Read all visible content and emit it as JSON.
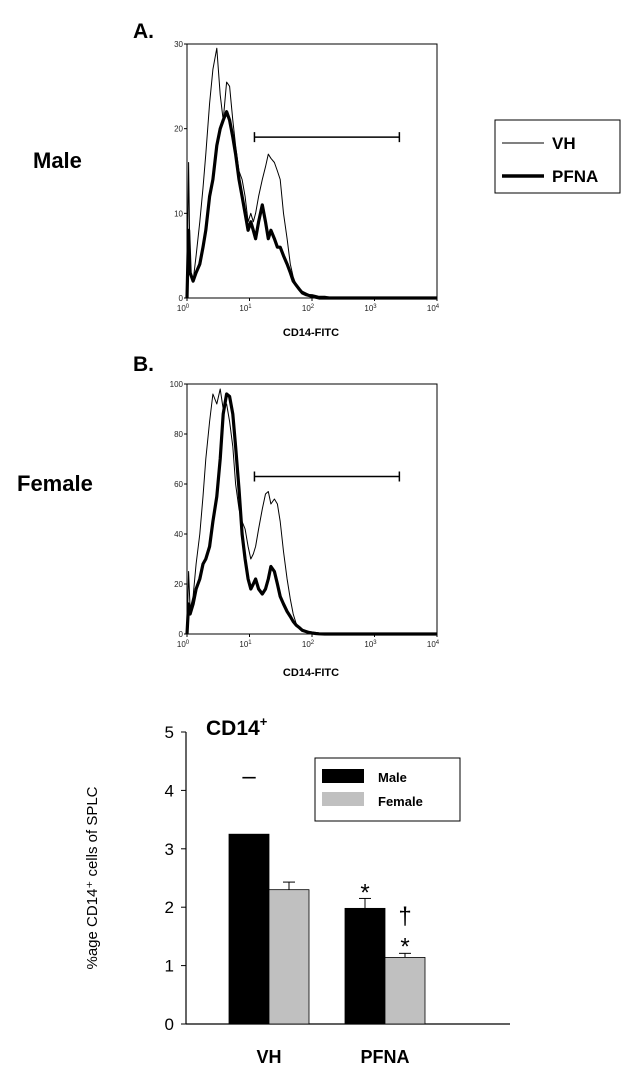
{
  "figure": {
    "panel_a_label": "A.",
    "panel_b_label": "B.",
    "male_label": "Male",
    "female_label": "Female",
    "legend": {
      "vh": "VH",
      "pfna": "PFNA"
    }
  },
  "chart_data": [
    {
      "id": "hist_male",
      "type": "line",
      "xlabel": "CD14-FITC",
      "xscale": "log",
      "xlim": [
        1,
        10000
      ],
      "ylim": [
        0,
        30
      ],
      "yticks": [
        0,
        10,
        20,
        30
      ],
      "xticks": [
        {
          "value": 1,
          "base": "10",
          "exp": "0"
        },
        {
          "value": 10,
          "base": "10",
          "exp": "1"
        },
        {
          "value": 100,
          "base": "10",
          "exp": "2"
        },
        {
          "value": 1000,
          "base": "10",
          "exp": "3"
        },
        {
          "value": 10000,
          "base": "10",
          "exp": "4"
        }
      ],
      "gate": [
        12,
        2500
      ],
      "gate_y": 19,
      "series": [
        {
          "name": "VH",
          "line": "thin",
          "x": [
            1.0,
            1.06,
            1.12,
            1.25,
            1.4,
            1.6,
            1.8,
            2.0,
            2.3,
            2.6,
            3.0,
            3.4,
            3.8,
            4.3,
            4.8,
            5.4,
            6.0,
            6.8,
            7.6,
            8.5,
            9.5,
            10.5,
            11.5,
            12.5,
            14,
            16,
            18,
            20,
            22,
            25,
            28,
            31,
            35,
            40,
            45,
            50,
            56,
            63,
            70,
            80,
            90,
            100,
            115,
            130,
            160,
            200,
            300,
            500,
            1000,
            3000,
            10000
          ],
          "y": [
            0,
            16,
            3,
            2,
            5,
            9,
            13,
            17,
            23,
            27,
            29.5,
            24,
            21,
            25.5,
            25,
            21,
            18,
            15,
            14,
            12,
            9,
            10,
            9,
            10,
            12,
            14,
            15.5,
            17,
            16.5,
            16,
            15,
            14,
            10,
            7,
            4,
            2.5,
            1.5,
            1,
            0.8,
            0.6,
            0.4,
            0.4,
            0.3,
            0.2,
            0.2,
            0.1,
            0,
            0,
            0,
            0,
            0
          ]
        },
        {
          "name": "PFNA",
          "line": "thick",
          "x": [
            1.0,
            1.06,
            1.12,
            1.25,
            1.4,
            1.6,
            1.8,
            2.0,
            2.3,
            2.6,
            3.0,
            3.4,
            3.8,
            4.3,
            4.8,
            5.4,
            6.0,
            6.8,
            7.6,
            8.5,
            9.5,
            10.5,
            11.5,
            12.5,
            14,
            16,
            18,
            20,
            22,
            25,
            28,
            31,
            35,
            40,
            45,
            50,
            56,
            63,
            70,
            80,
            90,
            100,
            115,
            130,
            160,
            200,
            300,
            500,
            1000,
            3000,
            10000
          ],
          "y": [
            0,
            8,
            3,
            2,
            3,
            4,
            6,
            8,
            12,
            14,
            18,
            20,
            21,
            22,
            21,
            19,
            17,
            14,
            12,
            10,
            8,
            9,
            8,
            7,
            9,
            11,
            9,
            7,
            8,
            7,
            6,
            6,
            5,
            4,
            3,
            2,
            1.5,
            1,
            0.6,
            0.4,
            0.3,
            0.2,
            0.1,
            0,
            0,
            0,
            0,
            0,
            0,
            0,
            0
          ]
        }
      ]
    },
    {
      "id": "hist_female",
      "type": "line",
      "xlabel": "CD14-FITC",
      "xscale": "log",
      "xlim": [
        1,
        10000
      ],
      "ylim": [
        0,
        100
      ],
      "yticks": [
        0,
        20,
        40,
        60,
        80,
        100
      ],
      "xticks": [
        {
          "value": 1,
          "base": "10",
          "exp": "0"
        },
        {
          "value": 10,
          "base": "10",
          "exp": "1"
        },
        {
          "value": 100,
          "base": "10",
          "exp": "2"
        },
        {
          "value": 1000,
          "base": "10",
          "exp": "3"
        },
        {
          "value": 10000,
          "base": "10",
          "exp": "4"
        }
      ],
      "gate": [
        12,
        2500
      ],
      "gate_y": 63,
      "series": [
        {
          "name": "VH",
          "line": "thin",
          "x": [
            1.0,
            1.06,
            1.12,
            1.25,
            1.4,
            1.6,
            1.8,
            2.0,
            2.3,
            2.6,
            3.0,
            3.4,
            3.8,
            4.3,
            4.8,
            5.4,
            6.0,
            6.8,
            7.6,
            8.5,
            9.5,
            10.5,
            11.5,
            12.5,
            14,
            16,
            18,
            20,
            22,
            25,
            28,
            31,
            35,
            40,
            45,
            50,
            56,
            63,
            70,
            80,
            90,
            100,
            115,
            130,
            160,
            200,
            300,
            500,
            1000,
            3000,
            10000
          ],
          "y": [
            0,
            25,
            10,
            15,
            28,
            40,
            55,
            70,
            85,
            96,
            92,
            98,
            90,
            92,
            85,
            75,
            60,
            50,
            45,
            42,
            35,
            30,
            32,
            35,
            42,
            50,
            56,
            57,
            52,
            54,
            52,
            45,
            33,
            22,
            14,
            8,
            4,
            2.5,
            1.5,
            1,
            0.8,
            0.6,
            0.5,
            0.4,
            0.3,
            0.2,
            0.1,
            0,
            0,
            0,
            0
          ]
        },
        {
          "name": "PFNA",
          "line": "thick",
          "x": [
            1.0,
            1.06,
            1.12,
            1.25,
            1.4,
            1.6,
            1.8,
            2.0,
            2.3,
            2.6,
            3.0,
            3.4,
            3.8,
            4.3,
            4.8,
            5.4,
            6.0,
            6.8,
            7.6,
            8.5,
            9.5,
            10.5,
            11.5,
            12.5,
            14,
            16,
            18,
            20,
            22,
            25,
            28,
            31,
            35,
            40,
            45,
            50,
            56,
            63,
            70,
            80,
            90,
            100,
            115,
            130,
            160,
            200,
            300,
            500,
            1000,
            3000,
            10000
          ],
          "y": [
            0,
            12,
            8,
            12,
            18,
            22,
            28,
            30,
            35,
            45,
            55,
            70,
            88,
            96,
            95,
            88,
            75,
            58,
            40,
            30,
            22,
            18,
            20,
            22,
            18,
            16,
            18,
            22,
            27,
            25,
            20,
            15,
            12,
            9,
            7,
            5,
            3.5,
            2.5,
            1.5,
            1,
            0.6,
            0.4,
            0.2,
            0.1,
            0,
            0,
            0,
            0,
            0,
            0,
            0
          ]
        }
      ]
    },
    {
      "id": "bar_cd14",
      "type": "bar",
      "title_main": "CD14",
      "title_sup": "+",
      "ylabel": "%age CD14⁺ cells of SPLC",
      "categories": [
        "VH",
        "PFNA"
      ],
      "ylim": [
        0,
        5
      ],
      "yticks": [
        0,
        1,
        2,
        3,
        4,
        5
      ],
      "series": [
        {
          "name": "Male",
          "color": "#000000",
          "values": [
            3.25,
            1.98
          ],
          "errors": [
            0.0,
            0.17
          ]
        },
        {
          "name": "Female",
          "color": "#c0c0c0",
          "values": [
            2.3,
            1.14
          ],
          "errors": [
            0.13,
            0.07
          ]
        }
      ],
      "annotations": [
        {
          "text": "–",
          "category": 0,
          "series": 0,
          "y": 4.25
        },
        {
          "text": "*",
          "category": 1,
          "series": 0,
          "y": 2.25
        },
        {
          "text": "†",
          "category": 1,
          "series": 1,
          "y": 1.85
        },
        {
          "text": "*",
          "category": 1,
          "series": 1,
          "y": 1.33
        }
      ]
    }
  ]
}
